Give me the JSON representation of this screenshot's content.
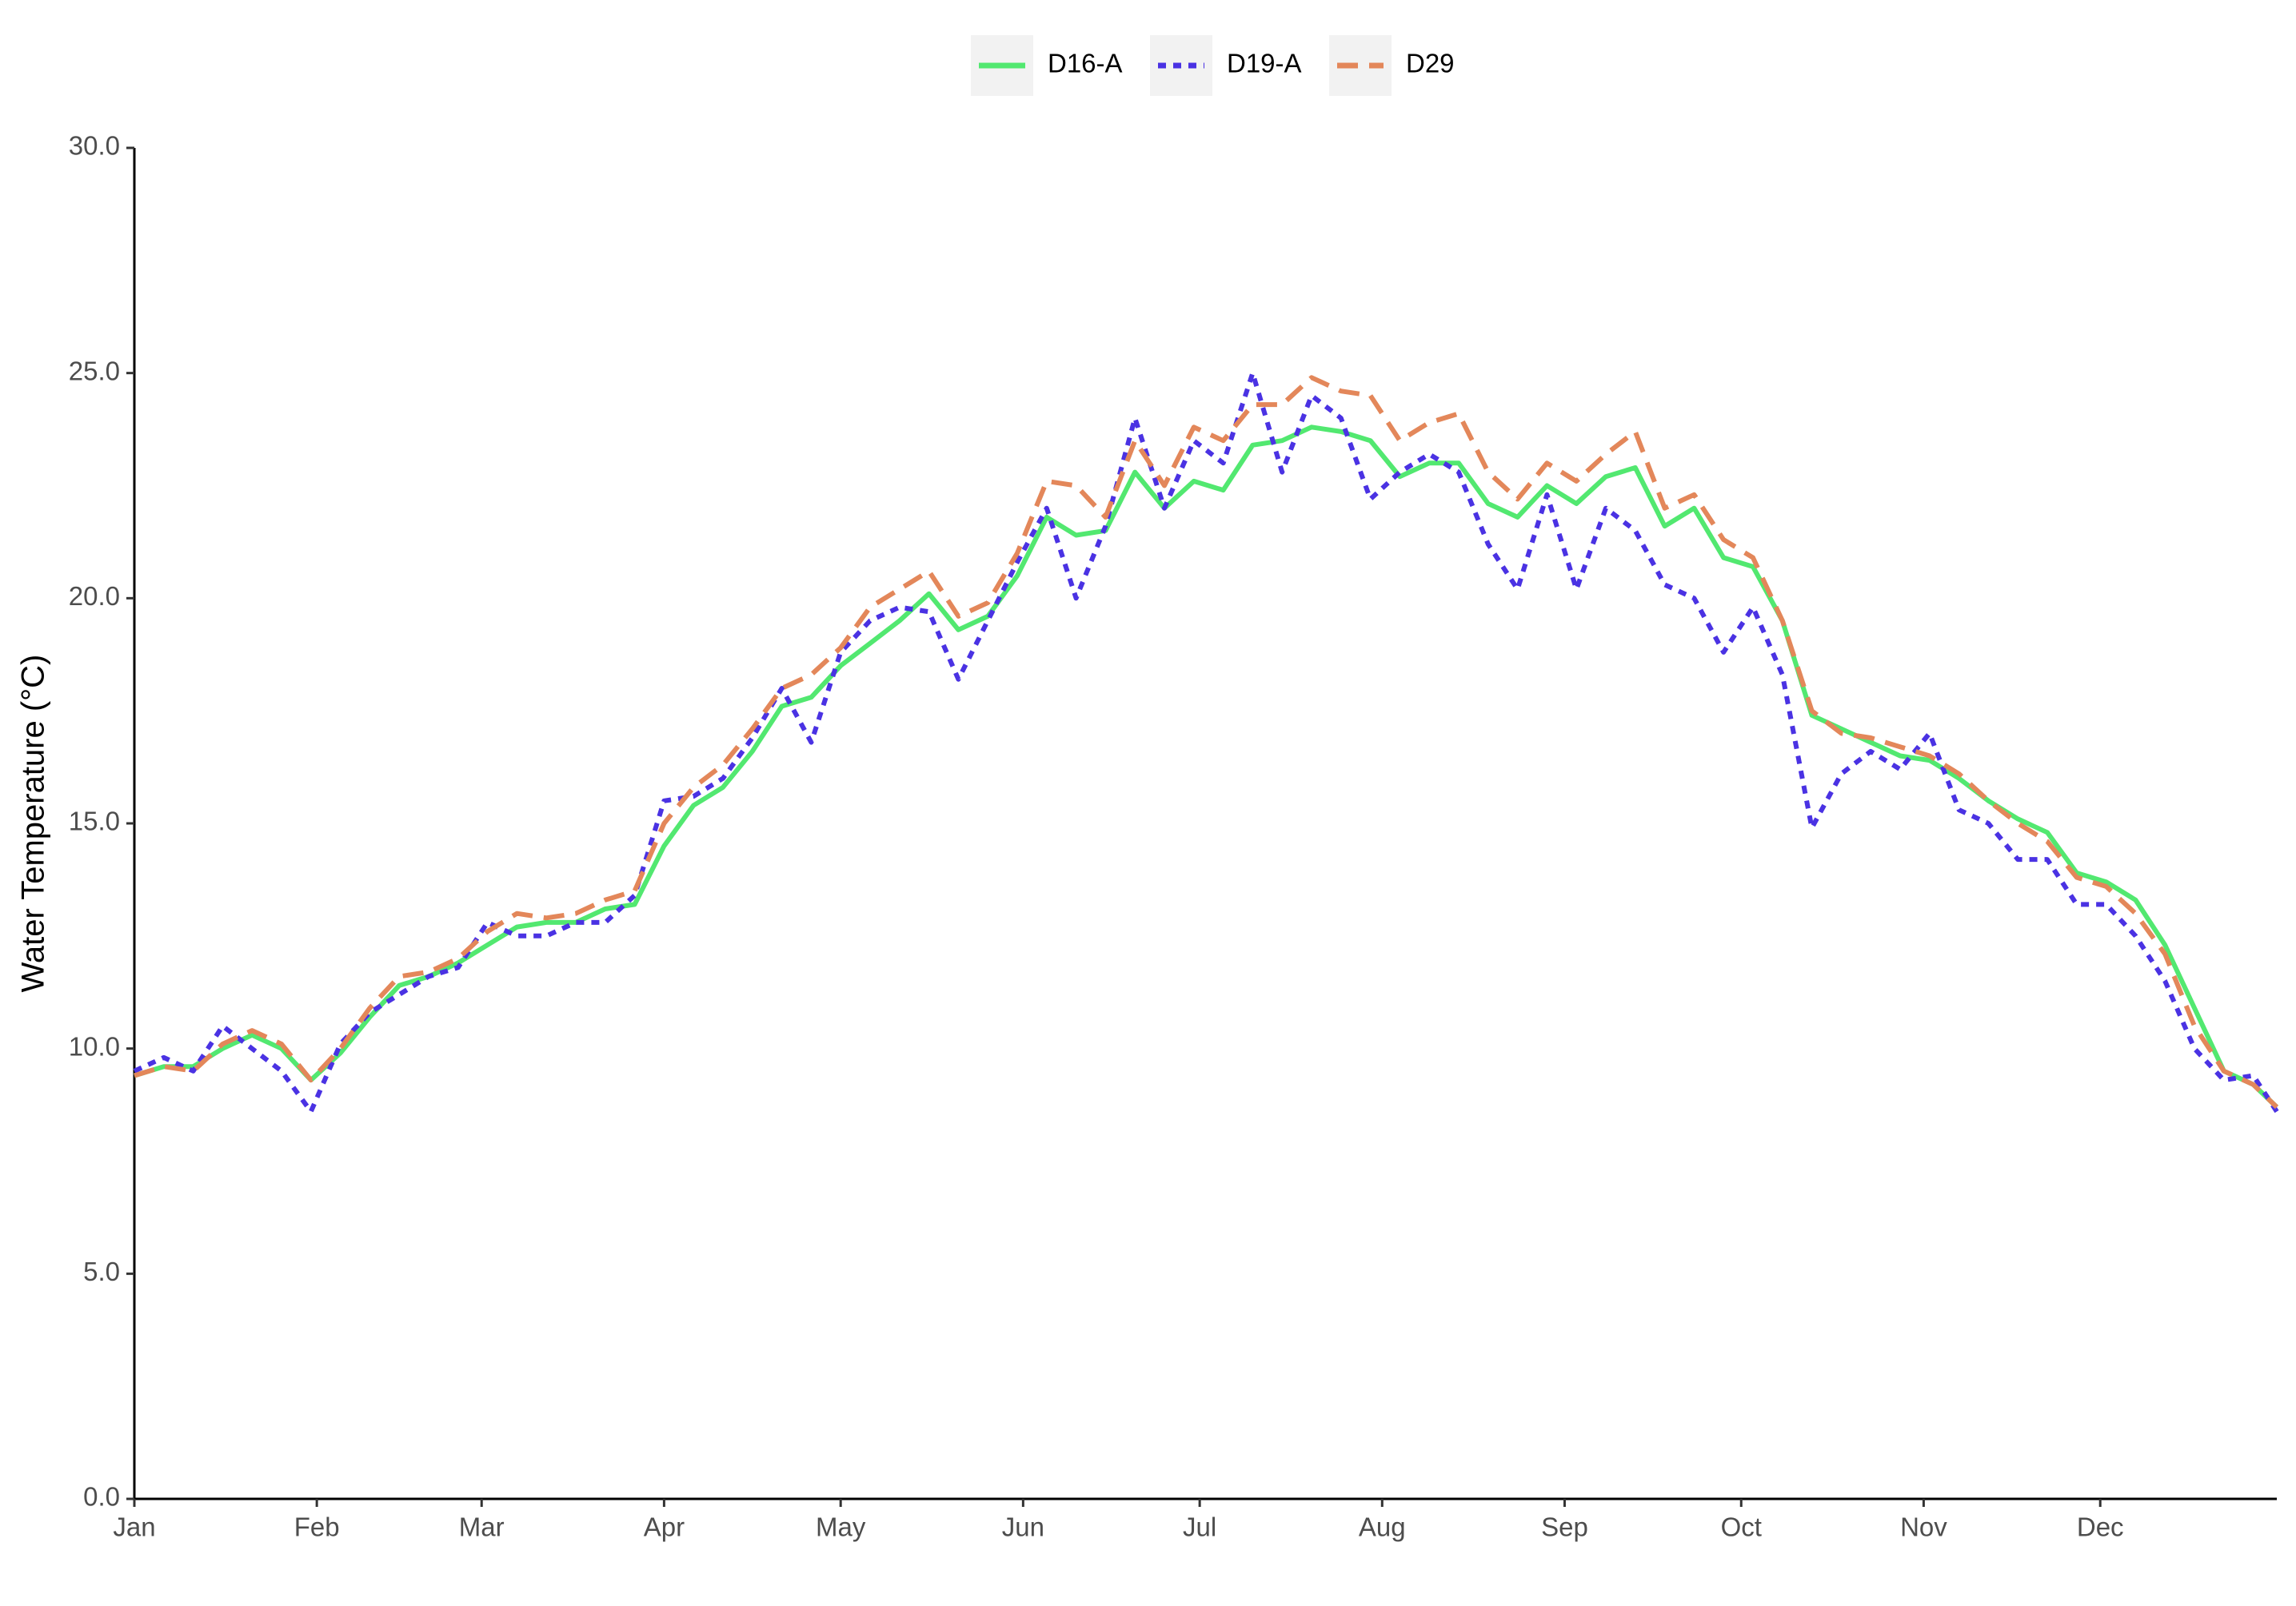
{
  "chart_data": {
    "type": "line",
    "y_label": "Water Temperature (°C)",
    "x": [
      1,
      6,
      11,
      16,
      21,
      26,
      31,
      36,
      41,
      46,
      51,
      56,
      61,
      66,
      71,
      76,
      81,
      86,
      91,
      96,
      101,
      106,
      111,
      116,
      121,
      126,
      131,
      136,
      141,
      146,
      151,
      156,
      161,
      166,
      171,
      176,
      181,
      186,
      191,
      196,
      201,
      206,
      211,
      216,
      221,
      226,
      231,
      236,
      241,
      246,
      251,
      256,
      261,
      266,
      271,
      276,
      281,
      286,
      291,
      296,
      301,
      306,
      311,
      316,
      321,
      326,
      331,
      336,
      341,
      346,
      351,
      356,
      361,
      365
    ],
    "xlim": [
      1,
      365
    ],
    "xticks": [
      {
        "value": 1,
        "label": "Jan"
      },
      {
        "value": 32,
        "label": "Feb"
      },
      {
        "value": 60,
        "label": "Mar"
      },
      {
        "value": 91,
        "label": "Apr"
      },
      {
        "value": 121,
        "label": "May"
      },
      {
        "value": 152,
        "label": "Jun"
      },
      {
        "value": 182,
        "label": "Jul"
      },
      {
        "value": 213,
        "label": "Aug"
      },
      {
        "value": 244,
        "label": "Sep"
      },
      {
        "value": 274,
        "label": "Oct"
      },
      {
        "value": 305,
        "label": "Nov"
      },
      {
        "value": 335,
        "label": "Dec"
      }
    ],
    "ylim": [
      0,
      30
    ],
    "yticks": [
      {
        "value": 0,
        "label": "0.0"
      },
      {
        "value": 5,
        "label": "5.0"
      },
      {
        "value": 10,
        "label": "10.0"
      },
      {
        "value": 15,
        "label": "15.0"
      },
      {
        "value": 20,
        "label": "20.0"
      },
      {
        "value": 25,
        "label": "25.0"
      },
      {
        "value": 30,
        "label": "30.0"
      }
    ],
    "legend": "top",
    "series": [
      {
        "name": "D16-A",
        "color": "#52e870",
        "dash": "solid",
        "values": [
          9.4,
          9.6,
          9.6,
          10.0,
          10.3,
          10.0,
          9.3,
          9.9,
          10.7,
          11.4,
          11.6,
          11.9,
          12.3,
          12.7,
          12.8,
          12.8,
          13.1,
          13.2,
          14.5,
          15.4,
          15.8,
          16.6,
          17.6,
          17.8,
          18.5,
          19.0,
          19.5,
          20.1,
          19.3,
          19.6,
          20.5,
          21.8,
          21.4,
          21.5,
          22.8,
          22.0,
          22.6,
          22.4,
          23.4,
          23.5,
          23.8,
          23.7,
          23.5,
          22.7,
          23.0,
          23.0,
          22.1,
          21.8,
          22.5,
          22.1,
          22.7,
          22.9,
          21.6,
          22.0,
          20.9,
          20.7,
          19.5,
          17.4,
          17.1,
          16.8,
          16.5,
          16.4,
          16.0,
          15.5,
          15.1,
          14.8,
          13.9,
          13.7,
          13.3,
          12.3,
          10.9,
          9.5,
          9.2,
          8.7
        ]
      },
      {
        "name": "D19-A",
        "color": "#4a32e3",
        "dash": "dotted",
        "values": [
          9.5,
          9.8,
          9.5,
          10.5,
          10.0,
          9.5,
          8.6,
          10.1,
          10.8,
          11.2,
          11.6,
          11.8,
          12.8,
          12.5,
          12.5,
          12.8,
          12.8,
          13.4,
          15.5,
          15.6,
          16.0,
          16.9,
          18.0,
          16.8,
          18.8,
          19.5,
          19.8,
          19.7,
          18.2,
          19.5,
          20.8,
          22.0,
          20.0,
          21.6,
          24.0,
          22.0,
          23.5,
          23.0,
          25.0,
          22.8,
          24.5,
          24.0,
          22.2,
          22.8,
          23.2,
          22.8,
          21.2,
          20.2,
          22.3,
          20.2,
          22.0,
          21.5,
          20.3,
          20.0,
          18.8,
          19.8,
          18.3,
          14.9,
          16.1,
          16.6,
          16.2,
          17.0,
          15.3,
          15.0,
          14.2,
          14.2,
          13.2,
          13.2,
          12.5,
          11.5,
          10.0,
          9.3,
          9.4,
          8.6
        ]
      },
      {
        "name": "D29",
        "color": "#e3875a",
        "dash": "dashed",
        "values": [
          9.4,
          9.6,
          9.5,
          10.1,
          10.4,
          10.1,
          9.3,
          10.0,
          10.9,
          11.6,
          11.7,
          12.0,
          12.6,
          13.0,
          12.9,
          13.0,
          13.3,
          13.5,
          15.0,
          15.8,
          16.3,
          17.1,
          18.0,
          18.3,
          18.9,
          19.8,
          20.2,
          20.6,
          19.6,
          19.9,
          21.0,
          22.6,
          22.5,
          21.8,
          23.5,
          22.5,
          23.8,
          23.5,
          24.3,
          24.3,
          24.9,
          24.6,
          24.5,
          23.5,
          23.9,
          24.1,
          22.8,
          22.2,
          23.0,
          22.6,
          23.2,
          23.7,
          22.0,
          22.3,
          21.3,
          20.9,
          19.5,
          17.5,
          17.0,
          16.9,
          16.7,
          16.5,
          16.1,
          15.5,
          15.0,
          14.6,
          13.8,
          13.6,
          13.0,
          12.1,
          10.5,
          9.5,
          9.2,
          8.7
        ]
      }
    ]
  }
}
